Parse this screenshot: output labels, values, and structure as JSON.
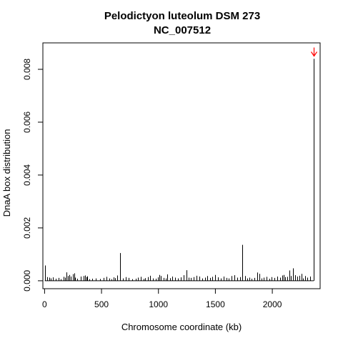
{
  "chart_data": {
    "type": "bar",
    "title": "Pelodictyon luteolum DSM 273",
    "subtitle": "NC_007512",
    "xlabel": "Chromosome coordinate (kb)",
    "ylabel": "DnaA box distribution",
    "xlim": [
      -15,
      2420
    ],
    "ylim": [
      -0.0003,
      0.009
    ],
    "xticks": [
      0,
      500,
      1000,
      1500,
      2000
    ],
    "yticks": [
      0.0,
      0.002,
      0.004,
      0.006,
      0.008
    ],
    "ytick_labels": [
      "0.000",
      "0.002",
      "0.004",
      "0.006",
      "0.008"
    ],
    "grid": false,
    "marker": {
      "x": 2364,
      "y": 0.0085,
      "color": "#ff0000",
      "symbol": "down-arrow"
    },
    "x": [
      2,
      25,
      40,
      55,
      70,
      95,
      120,
      140,
      165,
      180,
      195,
      205,
      215,
      230,
      250,
      258,
      265,
      285,
      320,
      340,
      355,
      365,
      375,
      390,
      420,
      450,
      490,
      520,
      545,
      570,
      590,
      605,
      620,
      640,
      660,
      690,
      715,
      740,
      770,
      800,
      820,
      845,
      870,
      885,
      905,
      925,
      950,
      975,
      995,
      1005,
      1020,
      1045,
      1065,
      1080,
      1100,
      1120,
      1145,
      1170,
      1195,
      1220,
      1245,
      1265,
      1285,
      1310,
      1335,
      1360,
      1385,
      1410,
      1430,
      1455,
      1475,
      1500,
      1520,
      1545,
      1570,
      1595,
      1615,
      1640,
      1665,
      1690,
      1715,
      1738,
      1760,
      1780,
      1800,
      1820,
      1845,
      1865,
      1885,
      1905,
      1925,
      1950,
      1975,
      1995,
      2020,
      2045,
      2070,
      2085,
      2100,
      2115,
      2130,
      2150,
      2165,
      2180,
      2200,
      2220,
      2240,
      2255,
      2270,
      2290,
      2310,
      2335,
      2364
    ],
    "values": [
      0.00058,
      0.00014,
      0.00012,
      9e-05,
      0.00013,
      8e-05,
      0.00011,
      6e-05,
      0.00015,
      0.00012,
      0.00032,
      0.00018,
      0.00022,
      0.00016,
      0.00025,
      0.00028,
      0.00012,
      8e-05,
      0.00016,
      0.00018,
      0.0002,
      0.00014,
      0.00017,
      6e-05,
      8e-05,
      9e-05,
      7e-05,
      0.00011,
      0.00015,
      9e-05,
      6e-05,
      0.00013,
      0.0001,
      0.0002,
      0.00105,
      9e-05,
      0.00014,
      0.00011,
      6e-05,
      8e-05,
      0.00012,
      0.00015,
      7e-05,
      0.0001,
      0.00014,
      0.00019,
      9e-05,
      8e-05,
      0.00013,
      0.00022,
      0.00018,
      0.00011,
      9e-05,
      0.00024,
      0.0001,
      0.00016,
      0.00012,
      9e-05,
      0.00013,
      0.00021,
      0.0004,
      0.00012,
      0.00011,
      0.00014,
      0.00019,
      0.00016,
      9e-05,
      0.00012,
      0.00018,
      0.00011,
      0.00015,
      0.00022,
      0.00013,
      9e-05,
      0.00016,
      0.00011,
      9e-05,
      0.00018,
      0.00021,
      0.00012,
      0.00014,
      0.00136,
      0.00018,
      9e-05,
      0.00012,
      8e-05,
      0.00011,
      0.00031,
      0.00026,
      9e-05,
      0.00012,
      0.00015,
      8e-05,
      0.00014,
      0.00011,
      0.00016,
      0.00012,
      0.0002,
      0.00022,
      0.00014,
      0.00015,
      0.00039,
      0.00018,
      0.00047,
      0.00021,
      0.00016,
      0.00019,
      0.00026,
      9e-05,
      0.00018,
      0.00012,
      0.00016,
      0.0084
    ]
  }
}
